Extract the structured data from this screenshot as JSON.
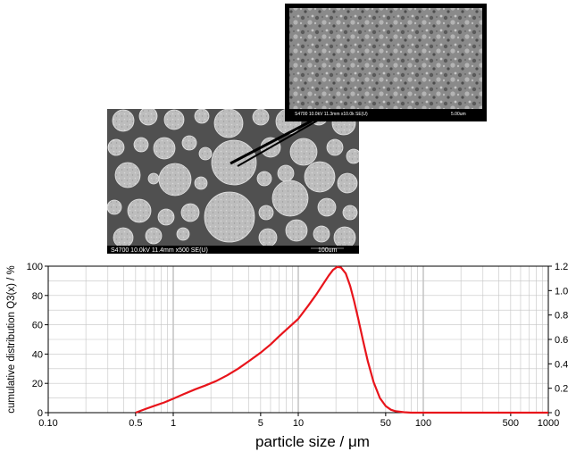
{
  "sem_main": {
    "caption_left": "S4700 10.0kV 11.4mm x500 SE(U)",
    "caption_right": "100um"
  },
  "sem_inset": {
    "caption_left": "S4700 10.0kV 11.3mm x10.0k SE(U)",
    "caption_right": "5.00um"
  },
  "chart_data": {
    "type": "line",
    "xlabel": "particle size / μm",
    "ylabel": "cumulative distribution Q3(x) / %",
    "x_scale": "log",
    "xlim": [
      0.1,
      1000
    ],
    "ylim": [
      0,
      100
    ],
    "y2lim": [
      0,
      1.2
    ],
    "grid": true,
    "x_ticks": [
      {
        "value": 0.1,
        "label": "0.10"
      },
      {
        "value": 0.5,
        "label": "0.5"
      },
      {
        "value": 1,
        "label": "1"
      },
      {
        "value": 5,
        "label": "5"
      },
      {
        "value": 10,
        "label": "10"
      },
      {
        "value": 50,
        "label": "50"
      },
      {
        "value": 100,
        "label": "100"
      },
      {
        "value": 500,
        "label": "500"
      },
      {
        "value": 1000,
        "label": "1000"
      }
    ],
    "y_ticks": [
      0,
      20,
      40,
      60,
      80,
      100
    ],
    "y2_ticks": [
      "0",
      "0.2",
      "0.4",
      "0.6",
      "0.8",
      "1.0",
      "1.2"
    ],
    "series": [
      {
        "color": "#e8141b",
        "x": [
          0.5,
          0.6,
          0.7,
          0.85,
          1.0,
          1.2,
          1.5,
          1.8,
          2.2,
          2.7,
          3.3,
          4.0,
          5.0,
          6.0,
          7.0,
          8.0,
          10.0,
          12.0,
          14.0,
          16.0,
          17.5,
          19.0,
          20.5,
          22.0,
          24.0,
          26.0,
          28.0,
          30.0,
          33.0,
          36.0,
          40.0,
          45.0,
          50.0,
          55.0,
          60.0,
          70.0,
          80.0,
          100.0,
          200.0,
          500.0,
          1000.0
        ],
        "y": [
          0,
          2.5,
          4.5,
          7,
          9.5,
          12.5,
          16,
          18.5,
          21.5,
          25.5,
          30,
          35,
          41,
          46.5,
          52,
          56.5,
          64,
          73,
          81,
          88.5,
          93.5,
          97.5,
          99.5,
          99,
          95,
          86.5,
          76,
          65,
          49,
          35,
          21,
          10,
          4.5,
          2,
          1,
          0.3,
          0,
          0,
          0,
          0,
          0
        ]
      }
    ]
  }
}
